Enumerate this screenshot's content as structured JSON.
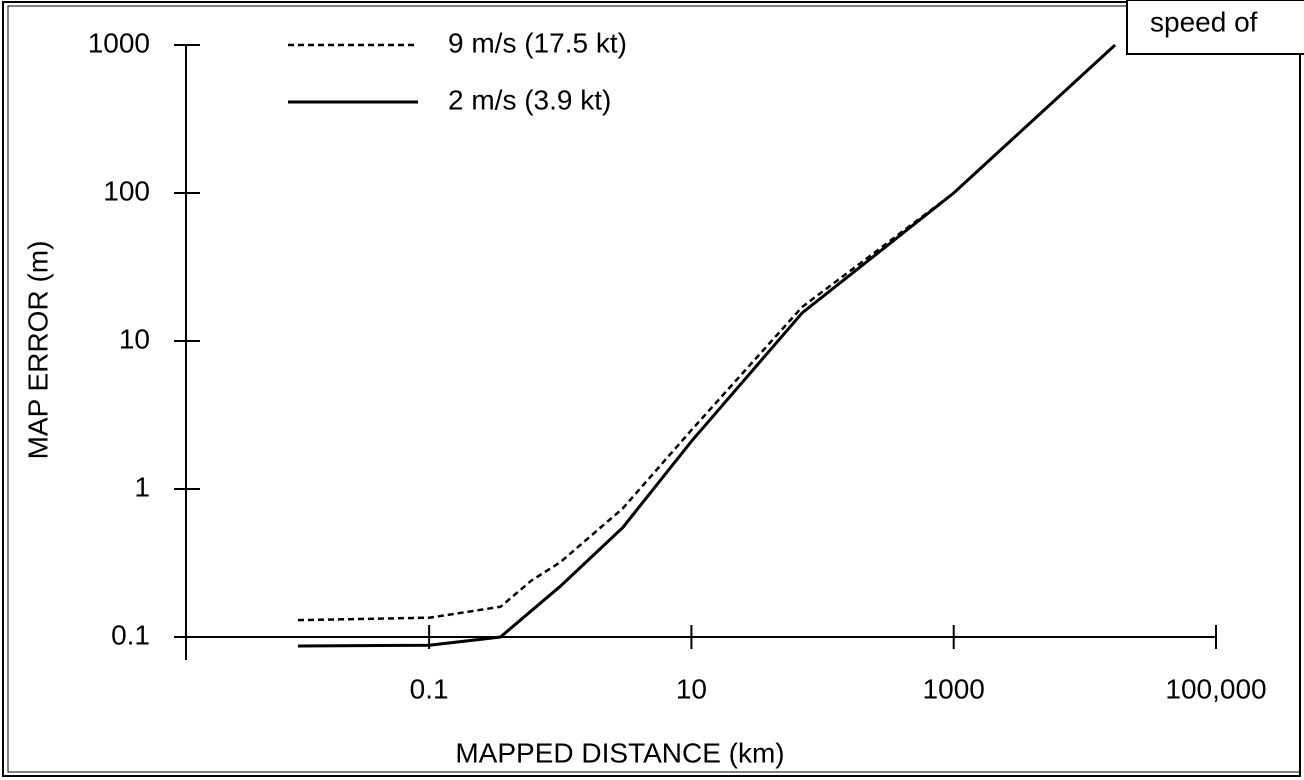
{
  "chart_data": {
    "type": "line",
    "x_label": "MAPPED DISTANCE (km)",
    "y_label": "MAP ERROR (m)",
    "annotation": "speed of",
    "log_x": true,
    "log_y": true,
    "xlim": [
      0.0014,
      100000
    ],
    "ylim": [
      0.1,
      1000
    ],
    "xticks": [
      0.1,
      10,
      1000,
      {
        "value": 100000,
        "label": "100,000"
      }
    ],
    "yticks": [
      0.1,
      1,
      10,
      100,
      1000
    ],
    "legend": "top-left",
    "x": [
      0.01,
      0.1,
      0.35,
      0.6,
      1,
      3,
      10,
      70,
      1000,
      17000
    ],
    "series": [
      {
        "name": "9 m/s (17.5 kt)",
        "color": "#000000",
        "dash": true,
        "values": [
          0.13,
          0.135,
          0.16,
          0.24,
          0.32,
          0.74,
          2.5,
          17,
          100,
          1000
        ]
      },
      {
        "name": "2 m/s (3.9 kt)",
        "color": "#000000",
        "dash": false,
        "values": [
          0.087,
          0.088,
          0.1,
          0.15,
          0.22,
          0.55,
          2.1,
          15.5,
          100,
          1000
        ]
      }
    ]
  }
}
